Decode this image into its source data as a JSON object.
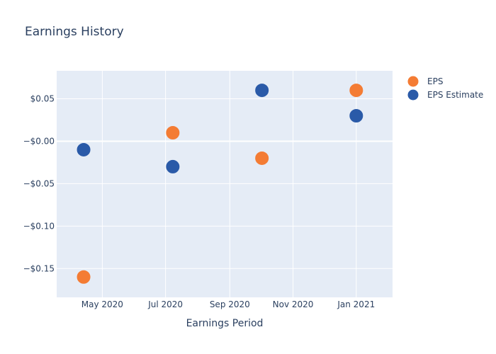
{
  "chart_data": {
    "type": "scatter",
    "title": "Earnings History",
    "xlabel": "Earnings Period",
    "ylabel": "",
    "x_tick_labels": [
      "May 2020",
      "Jul 2020",
      "Sep 2020",
      "Nov 2020",
      "Jan 2021"
    ],
    "x_tick_dates": [
      "2020-05-01",
      "2020-07-01",
      "2020-09-01",
      "2020-11-01",
      "2021-01-01"
    ],
    "x_range": [
      "2020-03-18",
      "2021-02-05"
    ],
    "y_tick_labels": [
      "$0.05",
      "−$0.00",
      "−$0.05",
      "−$0.10",
      "−$0.15"
    ],
    "y_tick_values": [
      0.05,
      0.0,
      -0.05,
      -0.1,
      -0.15
    ],
    "ylim": [
      -0.184,
      0.083
    ],
    "grid": true,
    "legend_position": "top-right",
    "series": [
      {
        "name": "EPS",
        "color": "#f47c34",
        "points": [
          {
            "x": "2020-04-13",
            "y": -0.16
          },
          {
            "x": "2020-07-08",
            "y": 0.01
          },
          {
            "x": "2020-10-02",
            "y": -0.02
          },
          {
            "x": "2021-01-01",
            "y": 0.06
          }
        ]
      },
      {
        "name": "EPS Estimate",
        "color": "#2a5aa8",
        "points": [
          {
            "x": "2020-04-13",
            "y": -0.01
          },
          {
            "x": "2020-07-08",
            "y": -0.03
          },
          {
            "x": "2020-10-02",
            "y": 0.06
          },
          {
            "x": "2021-01-01",
            "y": 0.03
          }
        ]
      }
    ]
  },
  "colors": {
    "plot_background": "#e5ecf6",
    "grid": "#ffffff",
    "text": "#2a3f5f"
  }
}
